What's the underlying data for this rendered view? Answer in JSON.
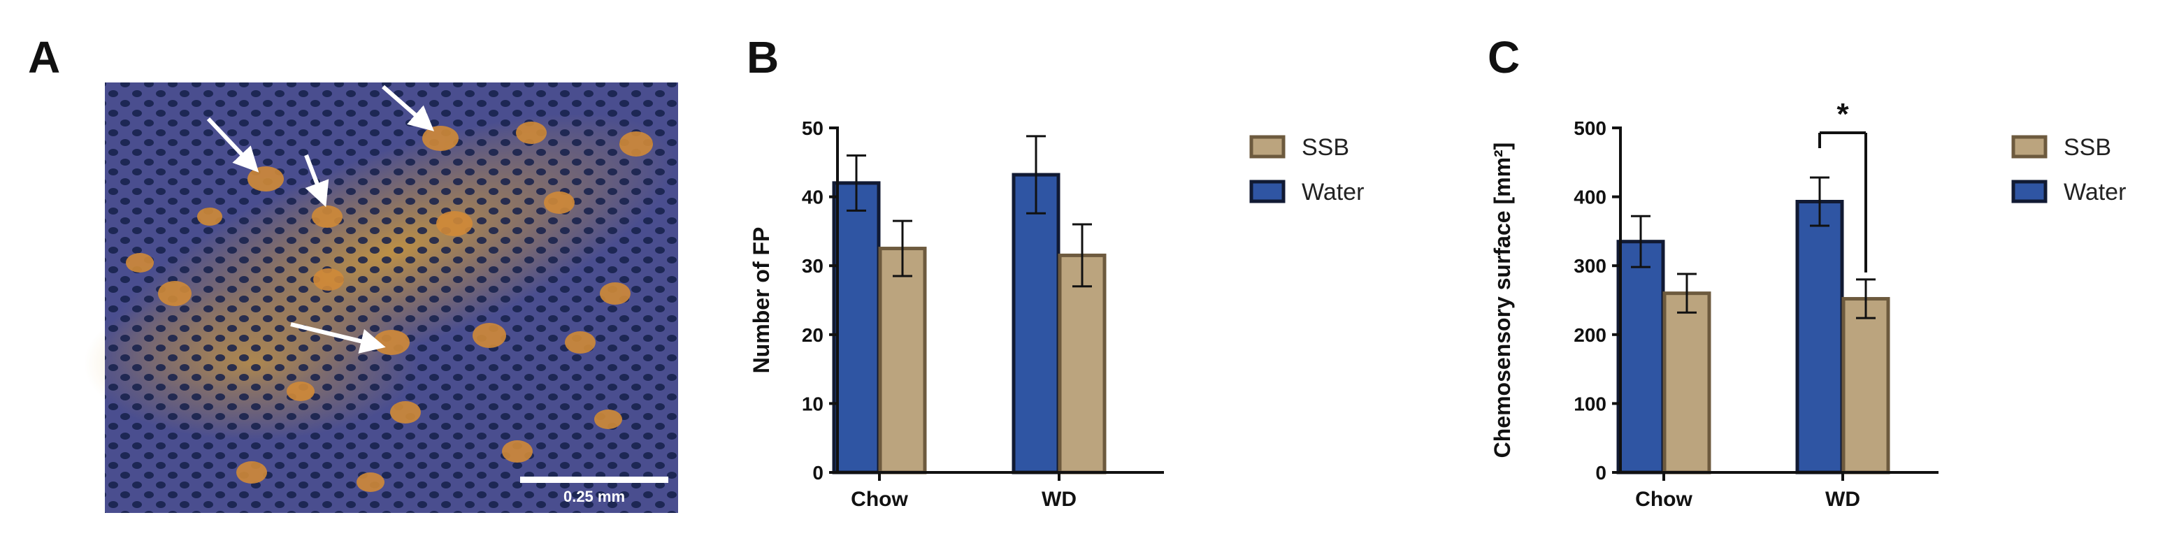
{
  "panels": {
    "a": {
      "letter": "A",
      "scale_label": "0.25 mm"
    },
    "b": {
      "letter": "B"
    },
    "c": {
      "letter": "C"
    }
  },
  "colors": {
    "water": "#2f55a3",
    "water_edge": "#111a33",
    "ssb": "#bba47e",
    "ssb_edge": "#6d5a3e",
    "axis": "#111111",
    "arrow": "#ffffff"
  },
  "chart_data": [
    {
      "panel": "B",
      "type": "bar",
      "categories": [
        "Chow",
        "WD"
      ],
      "series": [
        {
          "name": "Water",
          "values": [
            42,
            43.2
          ],
          "errors": [
            4,
            5.6
          ]
        },
        {
          "name": "SSB",
          "values": [
            32.5,
            31.5
          ],
          "errors": [
            4,
            4.5
          ]
        }
      ],
      "legend": [
        "SSB",
        "Water"
      ],
      "legend_position": "right",
      "ylabel": "Number of FP",
      "xlabel": "",
      "ylim": [
        0,
        50
      ],
      "yticks": [
        0,
        10,
        20,
        30,
        40,
        50
      ],
      "annotations": []
    },
    {
      "panel": "C",
      "type": "bar",
      "categories": [
        "Chow",
        "WD"
      ],
      "series": [
        {
          "name": "Water",
          "values": [
            335,
            393
          ],
          "errors": [
            37,
            35
          ]
        },
        {
          "name": "SSB",
          "values": [
            260,
            252
          ],
          "errors": [
            28,
            28
          ]
        }
      ],
      "legend": [
        "SSB",
        "Water"
      ],
      "legend_position": "right",
      "ylabel": "Chemosensory surface [mm²]",
      "xlabel": "",
      "ylim": [
        0,
        500
      ],
      "yticks": [
        0,
        100,
        200,
        300,
        400,
        500
      ],
      "annotations": [
        {
          "type": "significance",
          "category": "WD",
          "between": [
            "Water",
            "SSB"
          ],
          "label": "*"
        }
      ]
    }
  ]
}
